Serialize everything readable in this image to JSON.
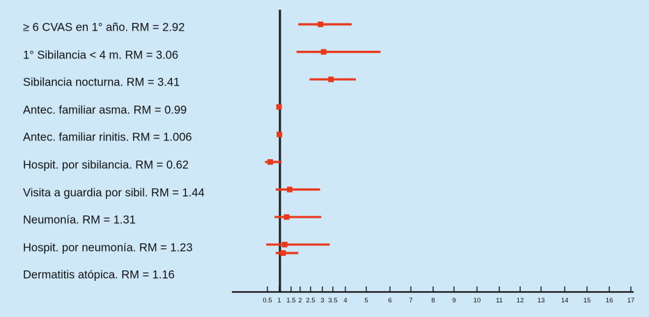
{
  "colors": {
    "background": "#cfe8f8",
    "marker": "#e8391a",
    "axis": "#1a1a1a"
  },
  "chart_data": {
    "type": "forest",
    "reference_value": 1,
    "x_ticks": [
      0.5,
      1,
      1.5,
      2,
      2.5,
      3,
      3.5,
      4,
      5,
      6,
      7,
      8,
      9,
      10,
      11,
      12,
      13,
      14,
      15,
      16,
      17
    ],
    "x_tick_labels": [
      "0.5",
      "1",
      "1.5",
      "2",
      "2.5",
      "3",
      "3.5",
      "4",
      "5",
      "6",
      "7",
      "8",
      "9",
      "10",
      "11",
      "12",
      "13",
      "14",
      "15",
      "16",
      "17"
    ],
    "rows": [
      {
        "label": "≥ 6 CVAS en 1° año. RM = 2.92",
        "estimate": 2.92,
        "ci_low": 1.9,
        "ci_high": 4.3
      },
      {
        "label": "1° Sibilancia < 4 m. RM = 3.06",
        "estimate": 3.06,
        "ci_low": 1.8,
        "ci_high": 5.6
      },
      {
        "label": "Sibilancia nocturna. RM = 3.41",
        "estimate": 3.41,
        "ci_low": 2.45,
        "ci_high": 4.5
      },
      {
        "label": "Antec. familiar asma. RM = 0.99",
        "estimate": 0.99,
        "ci_low": 0.96,
        "ci_high": 1.03
      },
      {
        "label": "Antec. familiar rinitis. RM = 1.006",
        "estimate": 1.006,
        "ci_low": 0.98,
        "ci_high": 1.04
      },
      {
        "label": "Hospit. por sibilancia. RM = 0.62",
        "estimate": 0.62,
        "ci_low": 0.4,
        "ci_high": 1.1
      },
      {
        "label": "Visita a guardia por sibil. RM = 1.44",
        "estimate": 1.44,
        "ci_low": 0.85,
        "ci_high": 2.9
      },
      {
        "label": "Neumonía. RM = 1.31",
        "estimate": 1.31,
        "ci_low": 0.8,
        "ci_high": 2.95
      },
      {
        "label": "Hospit. por neumonía. RM = 1.23",
        "estimate": 1.23,
        "ci_low": 0.45,
        "ci_high": 3.35
      },
      {
        "label": "Dermatitis atópica. RM = 1.16",
        "estimate": 1.16,
        "ci_low": 0.85,
        "ci_high": 1.9
      }
    ]
  }
}
